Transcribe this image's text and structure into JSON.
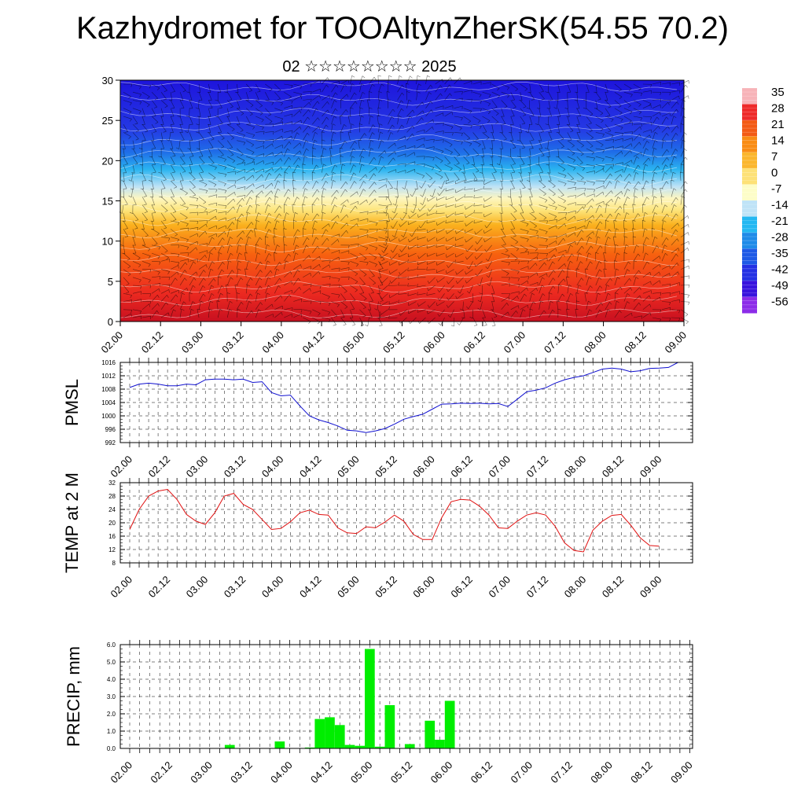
{
  "title": "Kazhydromet for TOOAltynZherSK(54.55 70.2)",
  "subtitle": "02 ☆☆☆☆☆☆☆☆ 2025",
  "x_ticks": [
    "02.00",
    "02.12",
    "03.00",
    "03.12",
    "04.00",
    "04.12",
    "05.00",
    "05.12",
    "06.00",
    "06.12",
    "07.00",
    "07.12",
    "08.00",
    "08.12",
    "09.00"
  ],
  "colorbar": {
    "labels": [
      "35",
      "28",
      "21",
      "14",
      "7",
      "0",
      "-7",
      "-14",
      "-21",
      "-28",
      "-35",
      "-42",
      "-49",
      "-56"
    ],
    "colors": [
      "#f7b3b8",
      "#ee2a2a",
      "#f35a14",
      "#f98c14",
      "#fbb62d",
      "#fde177",
      "#fdfdc8",
      "#bfe3f7",
      "#24b8f2",
      "#1f8be8",
      "#1e5ae6",
      "#2431e4",
      "#3712dd",
      "#8c2ce8"
    ]
  },
  "chart_data": [
    {
      "type": "heatmap",
      "title": "",
      "xlabel": "",
      "ylabel": "",
      "ylim": [
        0,
        30
      ],
      "y_ticks": [
        "0",
        "5",
        "10",
        "15",
        "20",
        "25",
        "30"
      ],
      "x_categories": [
        "02.00",
        "02.12",
        "03.00",
        "03.12",
        "04.00",
        "04.12",
        "05.00",
        "05.12",
        "06.00",
        "06.12",
        "07.00",
        "07.12",
        "08.00",
        "08.12",
        "09.00"
      ],
      "value_range": [
        -56,
        35
      ]
    },
    {
      "type": "line",
      "ylabel": "PMSL",
      "ylim": [
        992,
        1016
      ],
      "y_ticks": [
        "992",
        "996",
        "1000",
        "1004",
        "1008",
        "1012",
        "1016"
      ],
      "color": "#1010d0",
      "series": [
        {
          "values": [
            1008.5,
            1009.5,
            1009.8,
            1009.5,
            1009.0,
            1009.0,
            1009.5,
            1009.3,
            1010.8,
            1011.0,
            1011.0,
            1010.8,
            1011.0,
            1010.0,
            1010.2,
            1007.0,
            1006.0,
            1006.2,
            1003.0,
            1000.0,
            998.8,
            998.0,
            997.0,
            995.7,
            995.5,
            995.0,
            995.5,
            996.2,
            997.5,
            999.0,
            999.8,
            1000.5,
            1002.0,
            1003.5,
            1003.6,
            1003.8,
            1003.7,
            1003.8,
            1003.6,
            1003.7,
            1002.8,
            1005.0,
            1007.2,
            1007.7,
            1008.4,
            1009.8,
            1010.8,
            1011.5,
            1012.0,
            1013.0,
            1014.0,
            1014.3,
            1014.0,
            1013.2,
            1013.5,
            1014.2,
            1014.3,
            1014.5,
            1016.0
          ]
        }
      ]
    },
    {
      "type": "line",
      "ylabel": "TEMP at 2 M",
      "ylim": [
        8,
        32
      ],
      "y_ticks": [
        "8",
        "12",
        "16",
        "20",
        "24",
        "28",
        "32"
      ],
      "color": "#e01010",
      "series": [
        {
          "values": [
            18,
            24,
            28,
            29.5,
            30,
            27,
            22.5,
            20.5,
            19.5,
            23,
            28,
            28.8,
            25.5,
            24,
            21,
            18,
            18.3,
            20.3,
            23,
            23.8,
            22.5,
            22.3,
            18.5,
            17,
            16.8,
            18.8,
            18.5,
            20.2,
            22.3,
            20.5,
            16.5,
            15,
            15,
            21.5,
            26.3,
            27,
            26.8,
            25,
            22.3,
            18.5,
            18.3,
            20.5,
            22.3,
            23,
            22.3,
            19,
            14,
            11.7,
            11.3,
            17.8,
            20.5,
            22.2,
            22.5,
            19.3,
            15.5,
            13.2,
            13
          ]
        }
      ]
    },
    {
      "type": "bar",
      "ylabel": "PRECIP, mm",
      "ylim": [
        0,
        6
      ],
      "y_ticks": [
        "0.0",
        "1.0",
        "2.0",
        "3.0",
        "4.0",
        "5.0",
        "6.0"
      ],
      "color": "#00ee00",
      "series": [
        {
          "values": [
            0,
            0,
            0,
            0,
            0,
            0,
            0,
            0,
            0,
            0,
            0.2,
            0,
            0,
            0,
            0,
            0.4,
            0,
            0,
            0.05,
            1.7,
            1.8,
            1.35,
            0.2,
            0.15,
            5.75,
            0.1,
            2.5,
            0,
            0.25,
            0,
            1.6,
            0.5,
            2.75,
            0,
            0,
            0,
            0,
            0,
            0,
            0,
            0,
            0,
            0,
            0,
            0,
            0,
            0,
            0,
            0,
            0,
            0,
            0,
            0,
            0,
            0,
            0
          ]
        }
      ]
    }
  ]
}
